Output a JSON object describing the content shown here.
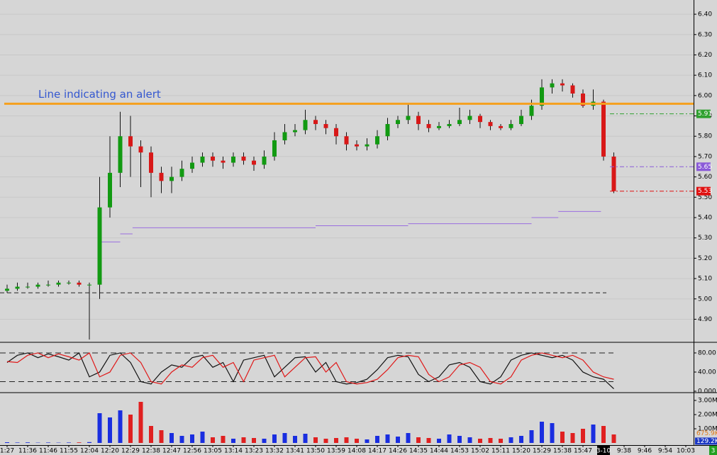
{
  "time_labels": [
    "1:27",
    "11:36",
    "11:46",
    "11:55",
    "12:04",
    "12:20",
    "12:29",
    "12:38",
    "12:47",
    "12:56",
    "13:05",
    "13:14",
    "13:23",
    "13:32",
    "13:41",
    "13:50",
    "13:59",
    "14:08",
    "14:17",
    "14:26",
    "14:35",
    "14:44",
    "14:53",
    "15:02",
    "15:11",
    "15:20",
    "15:29",
    "15:38",
    "15:47",
    "3-10",
    "9:38",
    "9:46",
    "9:54",
    "10:03"
  ],
  "corner_badge": "3",
  "chart_data": [
    {
      "type": "candlestick",
      "x": [
        0,
        0.5,
        1,
        1.5,
        2,
        2.5,
        3,
        3.5,
        4,
        4.5,
        5,
        5.5,
        6,
        6.5,
        7,
        7.5,
        8,
        8.5,
        9,
        9.5,
        10,
        10.5,
        11,
        11.5,
        12,
        12.5,
        13,
        13.5,
        14,
        14.5,
        15,
        15.5,
        16,
        16.5,
        17,
        17.5,
        18,
        18.5,
        19,
        19.5,
        20,
        20.5,
        21,
        21.5,
        22,
        22.5,
        23,
        23.5,
        24,
        24.5,
        25,
        25.5,
        26,
        26.5,
        27,
        27.5,
        28,
        28.5,
        29,
        29.5
      ],
      "open": [
        5.04,
        5.05,
        5.06,
        5.06,
        5.07,
        5.07,
        5.08,
        5.08,
        5.07,
        5.07,
        5.45,
        5.62,
        5.8,
        5.75,
        5.72,
        5.62,
        5.58,
        5.6,
        5.64,
        5.67,
        5.7,
        5.68,
        5.67,
        5.7,
        5.68,
        5.66,
        5.7,
        5.78,
        5.82,
        5.83,
        5.88,
        5.86,
        5.84,
        5.8,
        5.76,
        5.75,
        5.76,
        5.8,
        5.86,
        5.88,
        5.9,
        5.86,
        5.84,
        5.85,
        5.86,
        5.88,
        5.9,
        5.87,
        5.85,
        5.84,
        5.86,
        5.9,
        5.95,
        6.04,
        6.06,
        6.05,
        6.01,
        5.95,
        5.97,
        5.7
      ],
      "high": [
        5.07,
        5.08,
        5.08,
        5.08,
        5.09,
        5.09,
        5.09,
        5.09,
        5.08,
        5.6,
        5.8,
        5.92,
        5.9,
        5.78,
        5.75,
        5.65,
        5.65,
        5.68,
        5.7,
        5.72,
        5.72,
        5.7,
        5.72,
        5.72,
        5.7,
        5.73,
        5.82,
        5.86,
        5.86,
        5.93,
        5.9,
        5.88,
        5.86,
        5.82,
        5.78,
        5.79,
        5.83,
        5.89,
        5.9,
        5.96,
        5.92,
        5.88,
        5.87,
        5.88,
        5.94,
        5.93,
        5.91,
        5.88,
        5.86,
        5.88,
        5.93,
        5.98,
        6.08,
        6.08,
        6.08,
        6.06,
        6.03,
        6.03,
        5.98,
        5.72
      ],
      "low": [
        5.03,
        5.04,
        5.05,
        5.05,
        5.06,
        5.06,
        5.07,
        5.06,
        4.8,
        5.0,
        5.4,
        5.55,
        5.6,
        5.55,
        5.5,
        5.52,
        5.52,
        5.58,
        5.62,
        5.65,
        5.65,
        5.64,
        5.65,
        5.66,
        5.63,
        5.64,
        5.68,
        5.76,
        5.8,
        5.81,
        5.83,
        5.81,
        5.76,
        5.73,
        5.73,
        5.73,
        5.74,
        5.78,
        5.84,
        5.86,
        5.83,
        5.82,
        5.83,
        5.84,
        5.85,
        5.86,
        5.84,
        5.83,
        5.83,
        5.83,
        5.85,
        5.88,
        5.93,
        6.01,
        6.02,
        5.99,
        5.94,
        5.93,
        5.68,
        5.52
      ],
      "close": [
        5.05,
        5.06,
        5.06,
        5.07,
        5.07,
        5.08,
        5.08,
        5.07,
        5.07,
        5.45,
        5.62,
        5.8,
        5.75,
        5.72,
        5.62,
        5.58,
        5.6,
        5.64,
        5.67,
        5.7,
        5.68,
        5.67,
        5.7,
        5.68,
        5.66,
        5.7,
        5.78,
        5.82,
        5.83,
        5.88,
        5.86,
        5.84,
        5.8,
        5.76,
        5.75,
        5.76,
        5.8,
        5.86,
        5.88,
        5.9,
        5.86,
        5.84,
        5.85,
        5.86,
        5.88,
        5.9,
        5.87,
        5.85,
        5.84,
        5.86,
        5.9,
        5.95,
        6.04,
        6.06,
        6.05,
        6.01,
        5.95,
        5.97,
        5.7,
        5.53
      ],
      "color_up": "#129a12",
      "color_down": "#d81818",
      "ylim": [
        4.79,
        6.47
      ],
      "yticks": [
        {
          "value": 6.4,
          "label": "6.40"
        },
        {
          "value": 6.3,
          "label": "6.30"
        },
        {
          "value": 6.2,
          "label": "6.20"
        },
        {
          "value": 6.1,
          "label": "6.10"
        },
        {
          "value": 6.0,
          "label": "6.00"
        },
        {
          "value": 5.9,
          "label": "5.90"
        },
        {
          "value": 5.8,
          "label": "5.80"
        },
        {
          "value": 5.7,
          "label": "5.70"
        },
        {
          "value": 5.6,
          "label": "5.60"
        },
        {
          "value": 5.5,
          "label": "5.50"
        },
        {
          "value": 5.4,
          "label": "5.40"
        },
        {
          "value": 5.3,
          "label": "5.30"
        },
        {
          "value": 5.2,
          "label": "5.20"
        },
        {
          "value": 5.1,
          "label": "5.10"
        },
        {
          "value": 5.0,
          "label": "5.00"
        },
        {
          "value": 4.9,
          "label": "4.90"
        }
      ],
      "grid": true,
      "levels": [
        5.03
      ],
      "steps": {
        "color": "#9a6ee0",
        "x": [
          4.6,
          5.5,
          6.1,
          15,
          19.5,
          25.5,
          26.8,
          28.6
        ],
        "values": [
          5.28,
          5.32,
          5.35,
          5.36,
          5.37,
          5.4,
          5.43,
          5.43
        ]
      },
      "alert": {
        "value": 5.96,
        "label": "Line indicating an alert",
        "color": "#f5a01e"
      },
      "tags": [
        {
          "value": 5.91,
          "color": "#2ea02e"
        },
        {
          "value": 5.65,
          "color": "#8a5ad8"
        },
        {
          "value": 5.53,
          "color": "#e01010"
        }
      ]
    },
    {
      "type": "line",
      "series": [
        {
          "color": "#111111",
          "values": [
            60,
            75,
            80,
            70,
            78,
            72,
            65,
            80,
            30,
            40,
            75,
            80,
            60,
            20,
            15,
            40,
            55,
            50,
            70,
            75,
            50,
            60,
            20,
            65,
            70,
            75,
            30,
            50,
            70,
            72,
            40,
            60,
            20,
            15,
            18,
            25,
            45,
            70,
            75,
            72,
            35,
            20,
            30,
            55,
            60,
            50,
            20,
            15,
            30,
            65,
            75,
            80,
            75,
            70,
            75,
            65,
            40,
            30,
            25,
            5
          ]
        },
        {
          "color": "#e01818",
          "values": [
            62,
            60,
            75,
            80,
            70,
            78,
            72,
            65,
            80,
            30,
            40,
            75,
            80,
            60,
            20,
            15,
            40,
            55,
            50,
            70,
            75,
            50,
            60,
            20,
            65,
            70,
            75,
            30,
            50,
            70,
            72,
            40,
            60,
            20,
            15,
            18,
            25,
            45,
            70,
            75,
            72,
            35,
            20,
            30,
            55,
            60,
            50,
            20,
            15,
            30,
            65,
            75,
            80,
            75,
            70,
            75,
            65,
            40,
            30,
            25
          ]
        }
      ],
      "ylim": [
        -1.5,
        100.7
      ],
      "yticks": [
        {
          "value": 80,
          "label": "80.00"
        },
        {
          "value": 40,
          "label": "40.00"
        },
        {
          "value": 0,
          "label": "0.000"
        }
      ],
      "levels": [
        80,
        20
      ]
    },
    {
      "type": "bar",
      "values": [
        50000,
        30000,
        40000,
        20000,
        30000,
        20000,
        30000,
        40000,
        60000,
        2100000,
        1800000,
        2300000,
        2000000,
        2900000,
        1200000,
        900000,
        700000,
        500000,
        600000,
        800000,
        400000,
        500000,
        300000,
        400000,
        350000,
        300000,
        600000,
        700000,
        500000,
        650000,
        400000,
        300000,
        350000,
        400000,
        300000,
        250000,
        500000,
        600000,
        450000,
        700000,
        400000,
        350000,
        300000,
        600000,
        500000,
        400000,
        300000,
        350000,
        300000,
        400000,
        500000,
        900000,
        1500000,
        1400000,
        800000,
        700000,
        1000000,
        1300000,
        1200000,
        600000
      ],
      "color_up": "#1a2ee0",
      "color_down": "#e02020",
      "ylim": [
        -150000,
        3500000
      ],
      "yticks": [
        {
          "value": 3000000,
          "label": "3.00M"
        },
        {
          "value": 2000000,
          "label": "2.00M"
        },
        {
          "value": 1000000,
          "label": "1.00M"
        }
      ],
      "tags": [
        {
          "value": 675900,
          "label": "675.9K",
          "color": "#e07a1a"
        },
        {
          "value": 129200,
          "label": "129.2K",
          "color": "#1a36c4"
        }
      ]
    }
  ]
}
